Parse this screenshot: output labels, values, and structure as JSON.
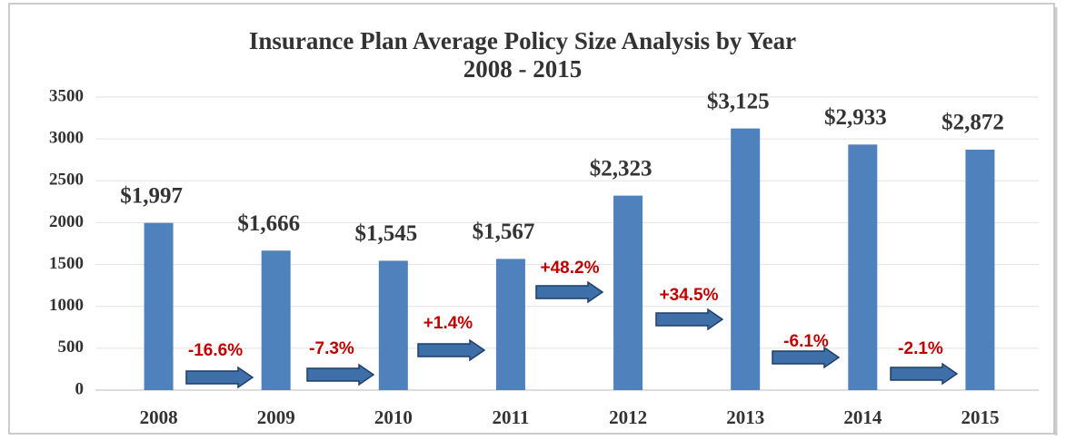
{
  "chart_data": {
    "type": "bar",
    "title": "Insurance Plan Average Policy Size Analysis by Year",
    "subtitle": "2008 - 2015",
    "categories": [
      "2008",
      "2009",
      "2010",
      "2011",
      "2012",
      "2013",
      "2014",
      "2015"
    ],
    "values": [
      1997,
      1666,
      1545,
      1567,
      2323,
      3125,
      2933,
      2872
    ],
    "value_labels": [
      "$1,997",
      "$1,666",
      "$1,545",
      "$1,567",
      "$2,323",
      "$3,125",
      "$2,933",
      "$2,872"
    ],
    "annotations": [
      "-16.6%",
      "-7.3%",
      "+1.4%",
      "+48.2%",
      "+34.5%",
      "-6.1%",
      "-2.1%"
    ],
    "color": "#4f81bd",
    "ylim": [
      0,
      3500
    ],
    "yticks": [
      0,
      500,
      1000,
      1500,
      2000,
      2500,
      3000,
      3500
    ],
    "grid": true
  }
}
